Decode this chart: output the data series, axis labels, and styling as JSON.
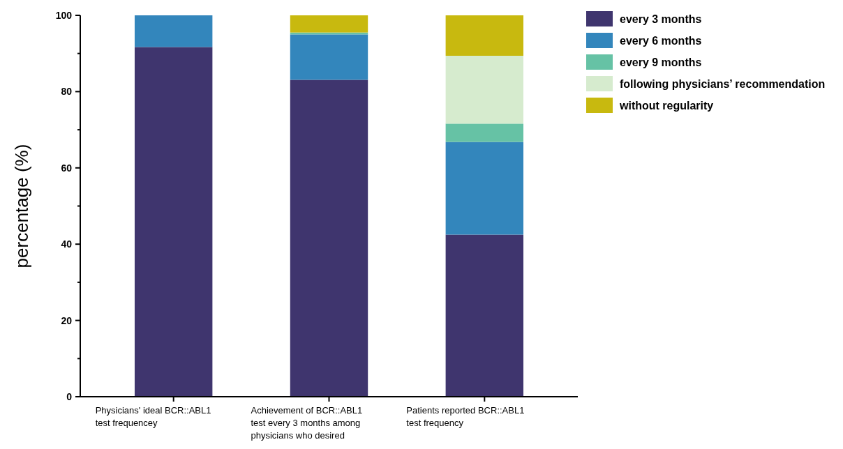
{
  "chart_data": {
    "type": "bar",
    "stacked": true,
    "ylabel": "percentage (%)",
    "categories": [
      "Physicians' ideal BCR::ABL1 test frequencey",
      "Achievement of BCR::ABL1 test every 3 months among physicians who desired",
      "Patients reported BCR::ABL1 test frequency"
    ],
    "series": [
      {
        "name": "every 3 months",
        "color": "#3f356e",
        "values": [
          91.7,
          83.1,
          42.5
        ]
      },
      {
        "name": "every 6 months",
        "color": "#3386bc",
        "values": [
          8.3,
          11.9,
          24.3
        ]
      },
      {
        "name": "every 9 months",
        "color": "#66c2a5",
        "values": [
          0,
          0.5,
          4.8
        ]
      },
      {
        "name": "following physicians’ recommendation",
        "color": "#d6ebce",
        "values": [
          0,
          0,
          17.8
        ]
      },
      {
        "name": "without regularity",
        "color": "#c8b90f",
        "values": [
          0,
          4.5,
          10.6
        ]
      }
    ],
    "ylim": [
      0,
      100
    ],
    "yticks": [
      0,
      {
        "value": 10,
        "label": null
      },
      20,
      {
        "value": 30,
        "label": null
      },
      40,
      {
        "value": 50,
        "label": null
      },
      60,
      {
        "value": 70,
        "label": null
      },
      80,
      {
        "value": 90,
        "label": null
      },
      100
    ],
    "grid": false,
    "legend": "top right"
  }
}
